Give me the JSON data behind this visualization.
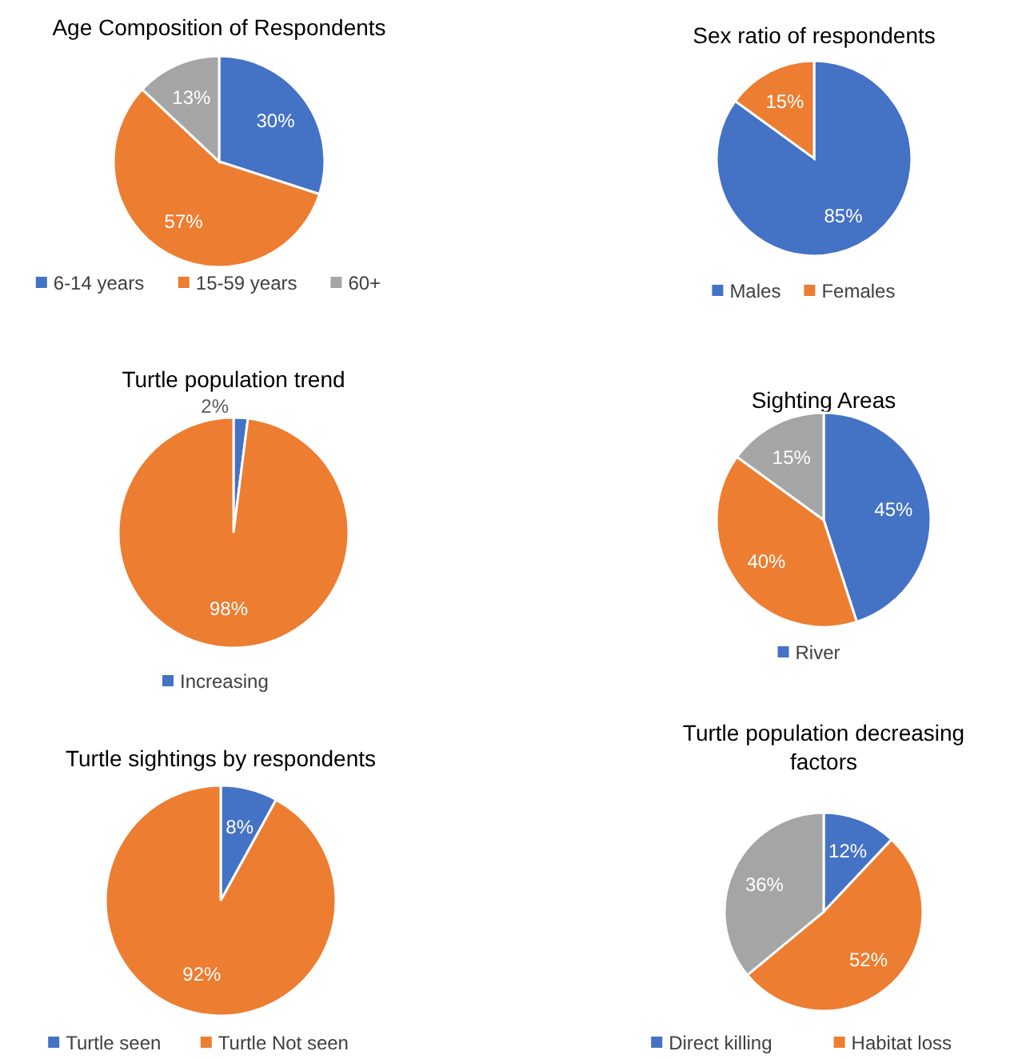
{
  "chart_data": [
    {
      "type": "pie",
      "title": "Age Composition of Respondents",
      "categories": [
        "6-14 years",
        "15-59 years",
        "60+"
      ],
      "values": [
        30,
        57,
        13
      ],
      "value_labels": [
        "30%",
        "57%",
        "13%"
      ],
      "colors": [
        "#4472c4",
        "#ed7d31",
        "#a5a5a5"
      ],
      "legend": "bottom"
    },
    {
      "type": "pie",
      "title": "Sex ratio of respondents",
      "categories": [
        "Males",
        "Females"
      ],
      "values": [
        85,
        15
      ],
      "value_labels": [
        "85%",
        "15%"
      ],
      "colors": [
        "#4472c4",
        "#ed7d31"
      ],
      "legend": "bottom"
    },
    {
      "type": "pie",
      "title": "Turtle population trend",
      "categories": [
        "Increasing",
        null
      ],
      "values": [
        2,
        98
      ],
      "value_labels": [
        "2%",
        "98%"
      ],
      "colors": [
        "#4472c4",
        "#ed7d31"
      ],
      "legend": "bottom"
    },
    {
      "type": "pie",
      "title": "Sighting Areas",
      "categories": [
        "River",
        null,
        null
      ],
      "values": [
        45,
        40,
        15
      ],
      "value_labels": [
        "45%",
        "40%",
        "15%"
      ],
      "colors": [
        "#4472c4",
        "#ed7d31",
        "#a5a5a5"
      ],
      "legend": "bottom"
    },
    {
      "type": "pie",
      "title": "Turtle sightings by respondents",
      "categories": [
        "Turtle seen",
        "Turtle Not seen"
      ],
      "values": [
        8,
        92
      ],
      "value_labels": [
        "8%",
        "92%"
      ],
      "colors": [
        "#4472c4",
        "#ed7d31"
      ],
      "legend": "bottom"
    },
    {
      "type": "pie",
      "title": "Turtle population decreasing factors",
      "categories": [
        "Direct killing",
        "Habitat loss",
        null
      ],
      "values": [
        12,
        52,
        36
      ],
      "value_labels": [
        "12%",
        "52%",
        "36%"
      ],
      "colors": [
        "#4472c4",
        "#ed7d31",
        "#a5a5a5"
      ],
      "legend": "bottom"
    }
  ]
}
